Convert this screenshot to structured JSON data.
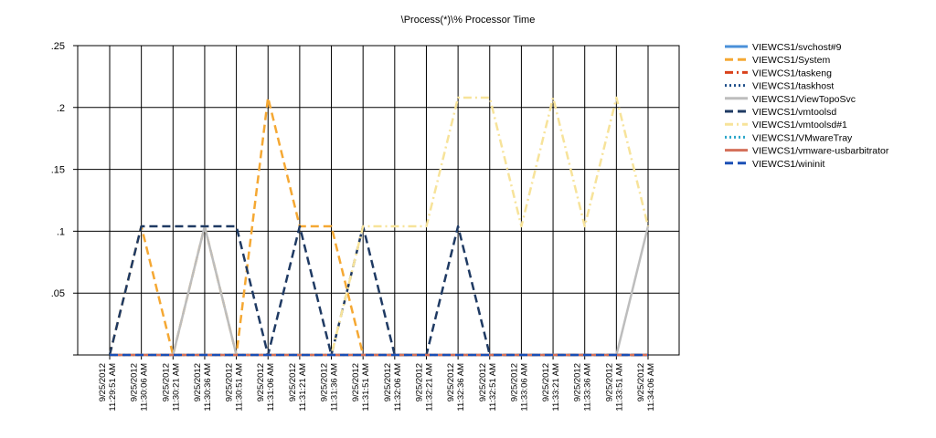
{
  "chart_data": {
    "type": "line",
    "title": "\\Process(*)\\% Processor Time",
    "xlabel": "",
    "ylabel": "",
    "ylim": [
      0,
      0.25
    ],
    "yticks": [
      0,
      0.05,
      0.1,
      0.15,
      0.2,
      0.25
    ],
    "ytick_labels": [
      "",
      ".05",
      ".1",
      ".15",
      ".2",
      ".25"
    ],
    "grid": true,
    "legend_position": "right",
    "x": [
      {
        "date": "9/25/2012",
        "time": "11:29:51 AM"
      },
      {
        "date": "9/25/2012",
        "time": "11:30:06 AM"
      },
      {
        "date": "9/25/2012",
        "time": "11:30:21 AM"
      },
      {
        "date": "9/25/2012",
        "time": "11:30:36 AM"
      },
      {
        "date": "9/25/2012",
        "time": "11:30:51 AM"
      },
      {
        "date": "9/25/2012",
        "time": "11:31:06 AM"
      },
      {
        "date": "9/25/2012",
        "time": "11:31:21 AM"
      },
      {
        "date": "9/25/2012",
        "time": "11:31:36 AM"
      },
      {
        "date": "9/25/2012",
        "time": "11:31:51 AM"
      },
      {
        "date": "9/25/2012",
        "time": "11:32:06 AM"
      },
      {
        "date": "9/25/2012",
        "time": "11:32:21 AM"
      },
      {
        "date": "9/25/2012",
        "time": "11:32:36 AM"
      },
      {
        "date": "9/25/2012",
        "time": "11:32:51 AM"
      },
      {
        "date": "9/25/2012",
        "time": "11:33:06 AM"
      },
      {
        "date": "9/25/2012",
        "time": "11:33:21 AM"
      },
      {
        "date": "9/25/2012",
        "time": "11:33:36 AM"
      },
      {
        "date": "9/25/2012",
        "time": "11:33:51 AM"
      },
      {
        "date": "9/25/2012",
        "time": "11:34:06 AM"
      }
    ],
    "series": [
      {
        "name": "VIEWCS1/svchost#9",
        "color": "#4a90d9",
        "dash": "solid",
        "values": [
          0,
          0,
          0,
          0,
          0,
          0,
          0,
          0,
          0,
          0,
          0,
          0,
          0,
          0,
          0,
          0,
          0,
          0
        ]
      },
      {
        "name": "VIEWCS1/System",
        "color": "#f5a833",
        "dash": "dash",
        "values": [
          0,
          0.104,
          0,
          0.104,
          0,
          0.208,
          0.104,
          0.104,
          0,
          0,
          0,
          0,
          0,
          0,
          0,
          0,
          0,
          0
        ]
      },
      {
        "name": "VIEWCS1/taskeng",
        "color": "#d9421b",
        "dash": "dashdot",
        "values": [
          0,
          0,
          0,
          0,
          0,
          0,
          0,
          0,
          0,
          0,
          0,
          0,
          0,
          0,
          0,
          0,
          0,
          0
        ]
      },
      {
        "name": "VIEWCS1/taskhost",
        "color": "#1f4f8a",
        "dash": "dot",
        "values": [
          0,
          0,
          0,
          0,
          0,
          0,
          0,
          0,
          0,
          0,
          0,
          0,
          0,
          0,
          0,
          0,
          0,
          0
        ]
      },
      {
        "name": "VIEWCS1/ViewTopoSvc",
        "color": "#bdbdbd",
        "dash": "solid",
        "values": [
          0,
          0,
          0,
          0.104,
          0,
          0,
          0,
          0,
          0,
          0,
          0,
          0,
          0,
          0,
          0,
          0,
          0,
          0.104
        ]
      },
      {
        "name": "VIEWCS1/vmtoolsd",
        "color": "#1f3a63",
        "dash": "dash",
        "values": [
          0,
          0.104,
          0.104,
          0.104,
          0.104,
          0,
          0.104,
          0,
          0.104,
          0,
          0,
          0.104,
          0,
          0,
          0,
          0,
          0,
          0
        ]
      },
      {
        "name": "VIEWCS1/vmtoolsd#1",
        "color": "#f7e39a",
        "dash": "dashdot",
        "values": [
          0,
          0,
          0,
          0,
          0,
          0,
          0,
          0,
          0.104,
          0.104,
          0.104,
          0.208,
          0.208,
          0.104,
          0.208,
          0.104,
          0.208,
          0.104
        ]
      },
      {
        "name": "VIEWCS1/VMwareTray",
        "color": "#2aa6c9",
        "dash": "dot",
        "values": [
          0,
          0,
          0,
          0,
          0,
          0,
          0,
          0,
          0,
          0,
          0,
          0,
          0,
          0,
          0,
          0,
          0,
          0
        ]
      },
      {
        "name": "VIEWCS1/vmware-usbarbitrator",
        "color": "#d4705a",
        "dash": "solid",
        "values": [
          0,
          0,
          0,
          0,
          0,
          0,
          0,
          0,
          0,
          0,
          0,
          0,
          0,
          0,
          0,
          0,
          0,
          0
        ]
      },
      {
        "name": "VIEWCS1/wininit",
        "color": "#1a4fb5",
        "dash": "dash",
        "values": [
          0,
          0,
          0,
          0,
          0,
          0,
          0,
          0,
          0,
          0,
          0,
          0,
          0,
          0,
          0,
          0,
          0,
          0
        ]
      }
    ]
  }
}
